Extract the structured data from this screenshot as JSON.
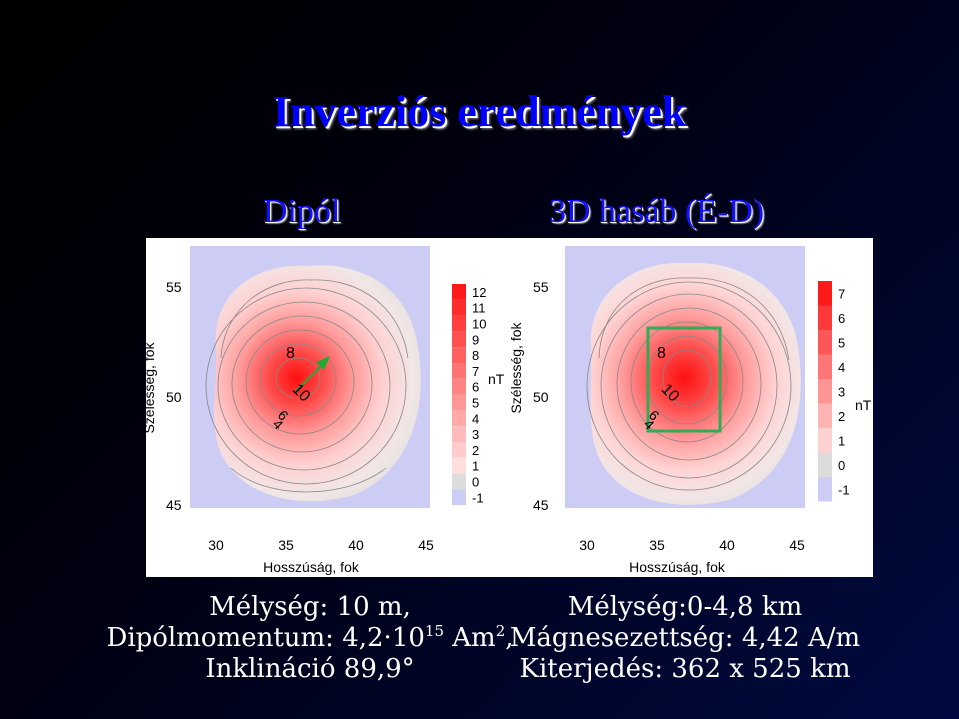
{
  "slide": {
    "title": "Inverziós eredmények"
  },
  "left": {
    "heading": "Dipól",
    "ylabel": "Szélesség, fok",
    "xlabel": "Hosszúság, fok",
    "yticks": [
      "55",
      "50",
      "45"
    ],
    "xticks": [
      "30",
      "35",
      "40",
      "45"
    ],
    "contour_labels": [
      "8",
      "10",
      "6",
      "4"
    ],
    "colorbar": {
      "unit": "nT",
      "ticks": [
        "12",
        "11",
        "10",
        "9",
        "8",
        "7",
        "6",
        "5",
        "4",
        "3",
        "2",
        "1",
        "0",
        "-1"
      ]
    },
    "caption": {
      "line1": "Mélység: 10 m,",
      "line2_prefix": "Dipólmomentum: 4,2·10",
      "line2_sup": "15",
      "line2_mid": " Am",
      "line2_sup2": "2",
      "line2_suffix": ",",
      "line3": "Inklináció 89,9°"
    }
  },
  "right": {
    "heading": "3D hasáb (É-D)",
    "ylabel": "Szélesség, fok",
    "xlabel": "Hosszúság, fok",
    "yticks": [
      "55",
      "50",
      "45"
    ],
    "xticks": [
      "30",
      "35",
      "40",
      "45"
    ],
    "contour_labels": [
      "8",
      "10",
      "6",
      "4"
    ],
    "colorbar": {
      "unit": "nT",
      "ticks": [
        "7",
        "6",
        "5",
        "4",
        "3",
        "2",
        "1",
        "0",
        "-1"
      ]
    },
    "caption": {
      "line1": "Mélység:0-4,8 km",
      "line2": "Mágnesezettség: 4,42 A/m",
      "line3": "Kiterjedés: 362 x 525 km"
    }
  },
  "colors": {
    "background": "#000000",
    "title": "#0000ff",
    "map_low": "#ccccf5",
    "map_zero": "#dcdcdc",
    "map_high": "#ff1a1a",
    "arrow": "#22aa33",
    "box": "#33aa55"
  }
}
